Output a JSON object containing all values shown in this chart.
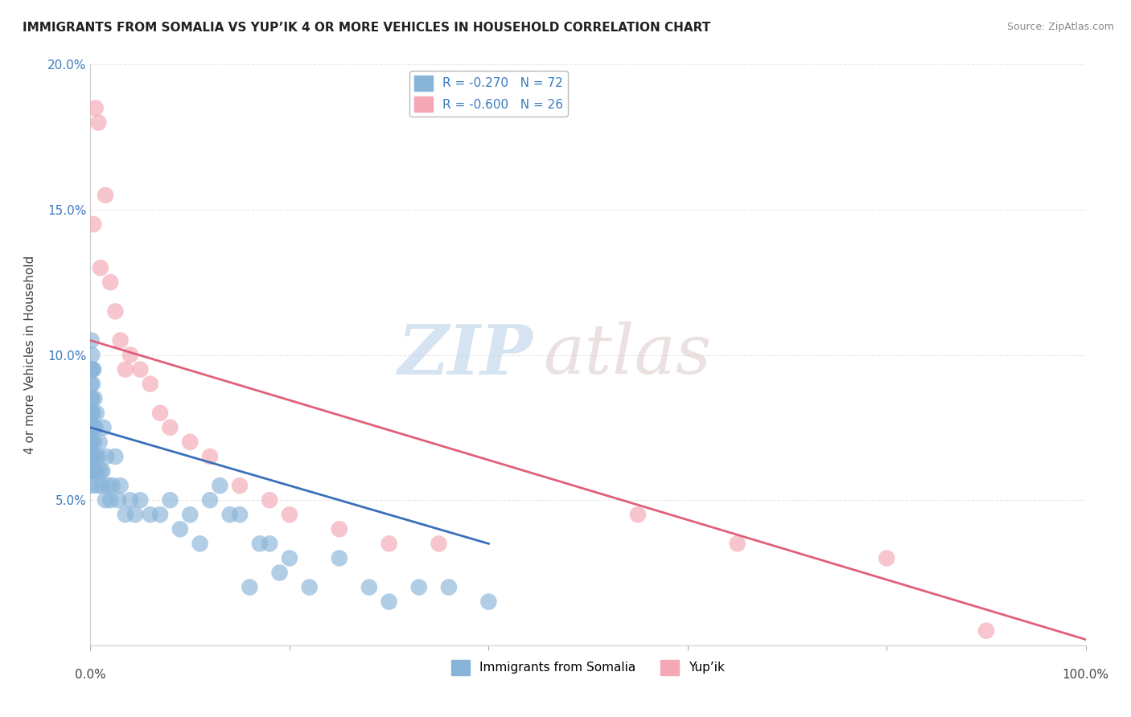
{
  "title": "IMMIGRANTS FROM SOMALIA VS YUP’IK 4 OR MORE VEHICLES IN HOUSEHOLD CORRELATION CHART",
  "source": "Source: ZipAtlas.com",
  "ylabel": "4 or more Vehicles in Household",
  "y_ticks": [
    0.0,
    5.0,
    10.0,
    15.0,
    20.0
  ],
  "y_tick_labels": [
    "",
    "5.0%",
    "10.0%",
    "15.0%",
    "20.0%"
  ],
  "xlim": [
    0.0,
    100.0
  ],
  "ylim": [
    0.0,
    20.0
  ],
  "somalia_R": -0.27,
  "somalia_N": 72,
  "yupik_R": -0.6,
  "yupik_N": 26,
  "somalia_color": "#89b4d9",
  "yupik_color": "#f4a7b5",
  "somalia_line_color": "#3a6fba",
  "yupik_line_color": "#e05f7a",
  "legend_label_somalia": "Immigrants from Somalia",
  "legend_label_yupik": "Yup’ik",
  "watermark_zip": "ZIP",
  "watermark_atlas": "atlas",
  "background_color": "#ffffff",
  "grid_color": "#e8e8e8",
  "somalia_scatter_x": [
    0.05,
    0.05,
    0.05,
    0.05,
    0.05,
    0.08,
    0.08,
    0.08,
    0.1,
    0.1,
    0.1,
    0.1,
    0.1,
    0.1,
    0.1,
    0.12,
    0.15,
    0.15,
    0.2,
    0.2,
    0.2,
    0.25,
    0.3,
    0.3,
    0.35,
    0.4,
    0.4,
    0.5,
    0.5,
    0.6,
    0.6,
    0.7,
    0.8,
    0.9,
    1.0,
    1.1,
    1.2,
    1.3,
    1.5,
    1.6,
    1.8,
    2.0,
    2.2,
    2.5,
    2.8,
    3.0,
    3.5,
    4.0,
    4.5,
    5.0,
    6.0,
    7.0,
    8.0,
    9.0,
    10.0,
    11.0,
    12.0,
    13.0,
    14.0,
    15.0,
    16.0,
    17.0,
    18.0,
    19.0,
    20.0,
    22.0,
    25.0,
    28.0,
    30.0,
    33.0,
    36.0,
    40.0
  ],
  "somalia_scatter_y": [
    6.5,
    7.0,
    7.5,
    8.0,
    9.0,
    6.0,
    7.0,
    8.5,
    5.5,
    6.0,
    6.5,
    7.0,
    7.5,
    8.0,
    10.5,
    9.5,
    8.5,
    10.0,
    9.0,
    9.5,
    6.5,
    8.0,
    7.5,
    9.5,
    6.0,
    8.5,
    7.0,
    7.5,
    6.5,
    8.0,
    6.0,
    5.5,
    6.5,
    7.0,
    6.0,
    5.5,
    6.0,
    7.5,
    5.0,
    6.5,
    5.5,
    5.0,
    5.5,
    6.5,
    5.0,
    5.5,
    4.5,
    5.0,
    4.5,
    5.0,
    4.5,
    4.5,
    5.0,
    4.0,
    4.5,
    3.5,
    5.0,
    5.5,
    4.5,
    4.5,
    2.0,
    3.5,
    3.5,
    2.5,
    3.0,
    2.0,
    3.0,
    2.0,
    1.5,
    2.0,
    2.0,
    1.5
  ],
  "yupik_scatter_x": [
    0.3,
    0.5,
    0.8,
    1.0,
    1.5,
    2.0,
    2.5,
    3.0,
    3.5,
    4.0,
    5.0,
    6.0,
    7.0,
    8.0,
    10.0,
    12.0,
    15.0,
    18.0,
    20.0,
    25.0,
    30.0,
    35.0,
    55.0,
    65.0,
    80.0,
    90.0
  ],
  "yupik_scatter_y": [
    14.5,
    18.5,
    18.0,
    13.0,
    15.5,
    12.5,
    11.5,
    10.5,
    9.5,
    10.0,
    9.5,
    9.0,
    8.0,
    7.5,
    7.0,
    6.5,
    5.5,
    5.0,
    4.5,
    4.0,
    3.5,
    3.5,
    4.5,
    3.5,
    3.0,
    0.5
  ],
  "somalia_line_x": [
    0.0,
    40.0
  ],
  "somalia_line_y": [
    7.5,
    3.5
  ],
  "yupik_line_x": [
    0.0,
    100.0
  ],
  "yupik_line_y": [
    10.5,
    0.2
  ]
}
